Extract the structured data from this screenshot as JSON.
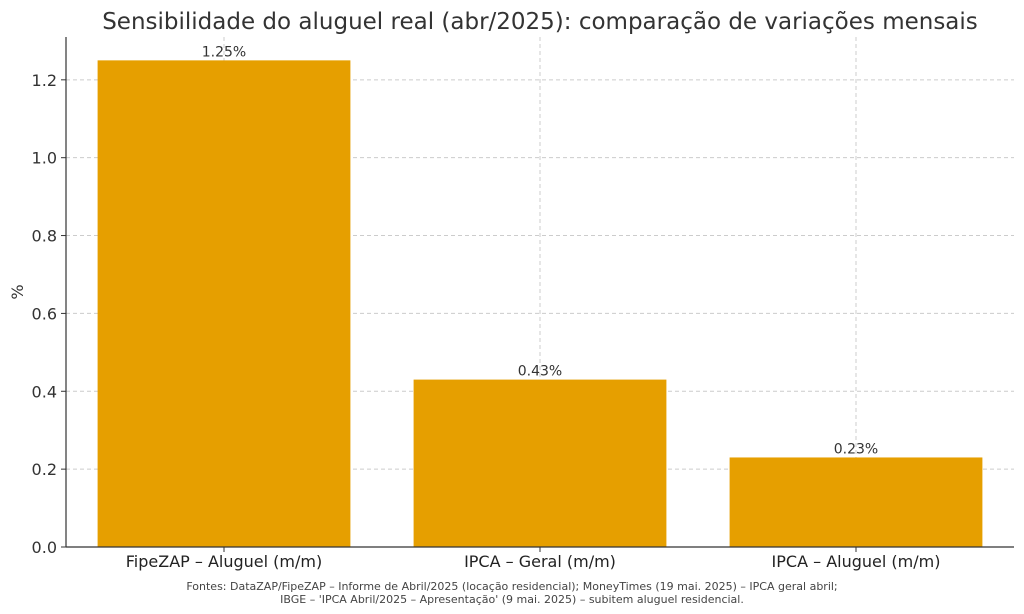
{
  "chart_data": {
    "type": "bar",
    "title": "Sensibilidade do aluguel real (abr/2025): comparação de variações mensais",
    "xlabel": "",
    "ylabel": "%",
    "categories": [
      "FipeZAP – Aluguel (m/m)",
      "IPCA – Geral (m/m)",
      "IPCA – Aluguel (m/m)"
    ],
    "values": [
      1.25,
      0.43,
      0.23
    ],
    "value_labels": [
      "1.25%",
      "0.43%",
      "0.23%"
    ],
    "ylim": [
      0,
      1.31
    ],
    "yticks": [
      0.0,
      0.2,
      0.4,
      0.6,
      0.8,
      1.0,
      1.2
    ],
    "ytick_labels": [
      "0.0",
      "0.2",
      "0.4",
      "0.6",
      "0.8",
      "1.0",
      "1.2"
    ],
    "grid": true,
    "bar_color": "#E69F00"
  },
  "footnote": {
    "line1": "Fontes: DataZAP/FipeZAP – Informe de Abril/2025 (locação residencial); MoneyTimes (19 mai. 2025) – IPCA geral abril;",
    "line2": "IBGE – 'IPCA Abril/2025 – Apresentação' (9 mai. 2025) – subitem aluguel residencial."
  }
}
